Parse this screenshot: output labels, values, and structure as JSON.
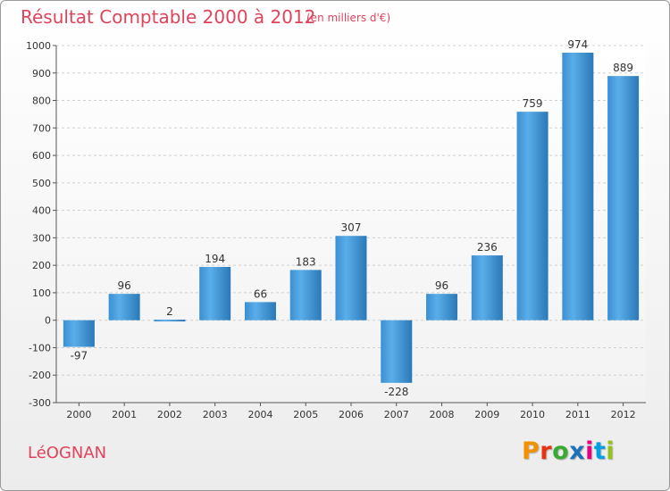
{
  "header": {
    "title": "Résultat Comptable 2000 à 2012",
    "subtitle": "(en milliers d'€)"
  },
  "footer": {
    "commune": "LéOGNAN",
    "logo_text": "Proxiti",
    "logo_colors": [
      "#f39200",
      "#e63312",
      "#3aaa35",
      "#1d71b8",
      "#e6007e",
      "#009fe3",
      "#95c11f"
    ]
  },
  "colors": {
    "title": "#e0435a",
    "bar_light": "#5aaee8",
    "bar_dark": "#2a78b8",
    "grid": "#d0d0d0",
    "axis": "#555555",
    "text": "#333333"
  },
  "chart_data": {
    "type": "bar",
    "title": "Résultat Comptable 2000 à 2012",
    "subtitle": "(en milliers d'€)",
    "categories": [
      "2000",
      "2001",
      "2002",
      "2003",
      "2004",
      "2005",
      "2006",
      "2007",
      "2008",
      "2009",
      "2010",
      "2011",
      "2012"
    ],
    "values": [
      -97,
      96,
      2,
      194,
      66,
      183,
      307,
      -228,
      96,
      236,
      759,
      974,
      889
    ],
    "data_labels": [
      "-97",
      "96",
      "2",
      "194",
      "66",
      "183",
      "307",
      "-228",
      "96",
      "236",
      "759",
      "974",
      "889"
    ],
    "ylim": [
      -300,
      1000
    ],
    "yticks": [
      -300,
      -200,
      -100,
      0,
      100,
      200,
      300,
      400,
      500,
      600,
      700,
      800,
      900,
      1000
    ],
    "ytick_labels": [
      "-300",
      "-200",
      "-100",
      "0",
      "100",
      "200",
      "300",
      "400",
      "500",
      "600",
      "700",
      "800",
      "900",
      "1000"
    ],
    "grid": "horizontal dashed",
    "legend": "none"
  }
}
